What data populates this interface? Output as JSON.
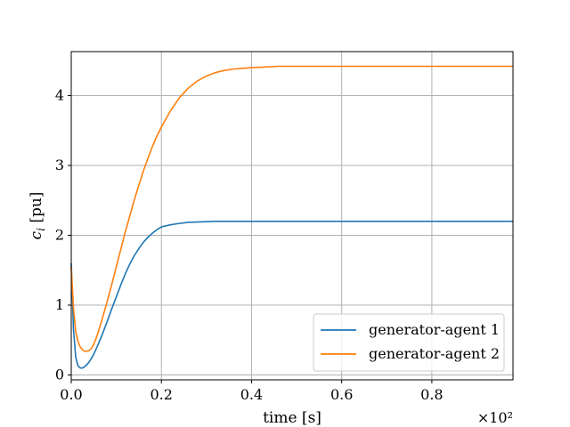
{
  "chart_data": {
    "type": "line",
    "xlabel": "time [s]",
    "ylabel": "c_i [pu]",
    "xlim": [
      0,
      0.98
    ],
    "ylim": [
      -0.07,
      4.63
    ],
    "x_multiplier": "×10²",
    "xticks": [
      {
        "value": 0.0,
        "label": "0.0"
      },
      {
        "value": 0.2,
        "label": "0.2"
      },
      {
        "value": 0.4,
        "label": "0.4"
      },
      {
        "value": 0.6,
        "label": "0.6"
      },
      {
        "value": 0.8,
        "label": "0.8"
      }
    ],
    "yticks": [
      {
        "value": 0,
        "label": "0"
      },
      {
        "value": 1,
        "label": "1"
      },
      {
        "value": 2,
        "label": "2"
      },
      {
        "value": 3,
        "label": "3"
      },
      {
        "value": 4,
        "label": "4"
      }
    ],
    "grid": true,
    "legend_position": "bottom-right",
    "series": [
      {
        "name": "generator-agent 1",
        "color": "#1f77b4",
        "x": [
          0,
          0.005,
          0.01,
          0.015,
          0.02,
          0.025,
          0.03,
          0.035,
          0.04,
          0.045,
          0.05,
          0.06,
          0.07,
          0.08,
          0.09,
          0.1,
          0.11,
          0.12,
          0.13,
          0.14,
          0.15,
          0.16,
          0.17,
          0.18,
          0.19,
          0.2,
          0.22,
          0.24,
          0.26,
          0.28,
          0.3,
          0.32,
          0.34,
          0.36,
          0.38,
          0.4,
          0.43,
          0.46,
          0.5,
          0.55,
          0.6,
          0.7,
          0.8,
          0.9,
          0.98
        ],
        "y": [
          1.6,
          0.65,
          0.25,
          0.13,
          0.1,
          0.1,
          0.12,
          0.15,
          0.19,
          0.24,
          0.3,
          0.44,
          0.6,
          0.77,
          0.95,
          1.12,
          1.29,
          1.45,
          1.59,
          1.71,
          1.81,
          1.9,
          1.97,
          2.03,
          2.08,
          2.12,
          2.15,
          2.17,
          2.185,
          2.19,
          2.195,
          2.2,
          2.2,
          2.2,
          2.2,
          2.2,
          2.2,
          2.2,
          2.2,
          2.2,
          2.2,
          2.2,
          2.2,
          2.2,
          2.2
        ]
      },
      {
        "name": "generator-agent 2",
        "color": "#ff7f0e",
        "x": [
          0,
          0.005,
          0.01,
          0.015,
          0.02,
          0.025,
          0.03,
          0.035,
          0.04,
          0.045,
          0.05,
          0.055,
          0.06,
          0.07,
          0.08,
          0.09,
          0.1,
          0.11,
          0.12,
          0.13,
          0.14,
          0.15,
          0.16,
          0.17,
          0.18,
          0.19,
          0.2,
          0.22,
          0.24,
          0.26,
          0.28,
          0.3,
          0.32,
          0.34,
          0.36,
          0.38,
          0.4,
          0.43,
          0.46,
          0.5,
          0.55,
          0.6,
          0.7,
          0.8,
          0.9,
          0.98
        ],
        "y": [
          1.55,
          0.95,
          0.62,
          0.48,
          0.4,
          0.36,
          0.34,
          0.34,
          0.35,
          0.38,
          0.44,
          0.52,
          0.62,
          0.83,
          1.06,
          1.3,
          1.55,
          1.8,
          2.05,
          2.28,
          2.51,
          2.72,
          2.92,
          3.1,
          3.27,
          3.42,
          3.55,
          3.78,
          3.97,
          4.11,
          4.21,
          4.28,
          4.33,
          4.36,
          4.38,
          4.39,
          4.4,
          4.41,
          4.42,
          4.42,
          4.42,
          4.42,
          4.42,
          4.42,
          4.42,
          4.42
        ]
      }
    ]
  }
}
